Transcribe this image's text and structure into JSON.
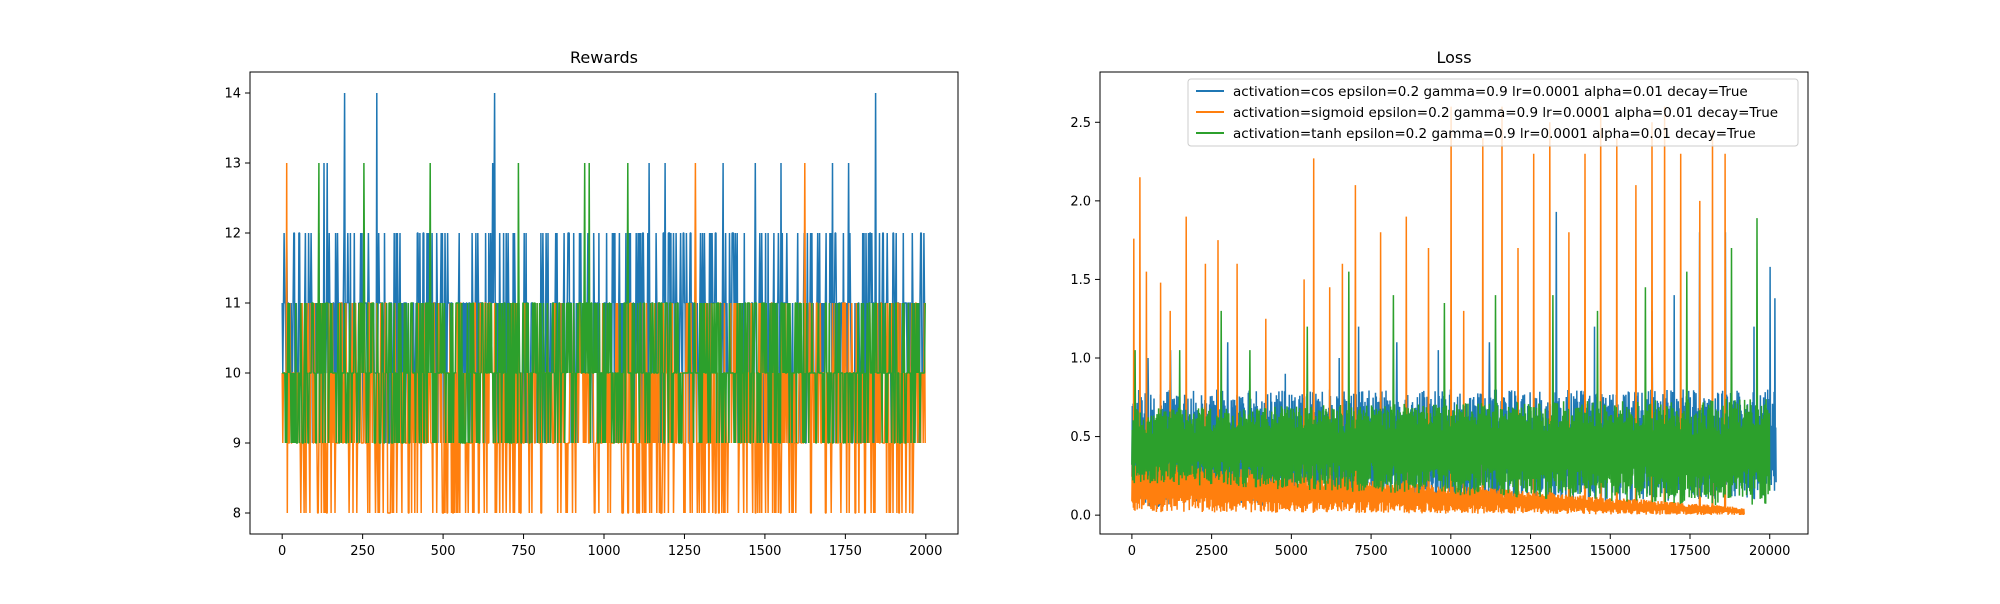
{
  "colors": {
    "blue": "#1f77b4",
    "orange": "#ff7f0e",
    "green": "#2ca02c"
  },
  "chart_data": [
    {
      "type": "line",
      "title": "Rewards",
      "xlabel": "",
      "ylabel": "",
      "xlim": [
        -100,
        2100
      ],
      "ylim": [
        7.7,
        14.3
      ],
      "xticks": [
        0,
        250,
        500,
        750,
        1000,
        1250,
        1500,
        1750,
        2000
      ],
      "yticks": [
        8,
        9,
        10,
        11,
        12,
        13,
        14
      ],
      "grid": false,
      "series": [
        {
          "color": "blue",
          "band": [
            9,
            12
          ],
          "n": 2000,
          "spikes": [
            {
              "x": 195,
              "y": 14
            },
            {
              "x": 295,
              "y": 14
            },
            {
              "x": 660,
              "y": 14
            },
            {
              "x": 1845,
              "y": 14
            },
            {
              "x": 130,
              "y": 13
            },
            {
              "x": 140,
              "y": 13
            },
            {
              "x": 655,
              "y": 13
            },
            {
              "x": 1140,
              "y": 13
            },
            {
              "x": 1190,
              "y": 13
            },
            {
              "x": 1370,
              "y": 13
            },
            {
              "x": 1470,
              "y": 13
            },
            {
              "x": 1550,
              "y": 13
            },
            {
              "x": 1710,
              "y": 13
            },
            {
              "x": 1760,
              "y": 13
            }
          ]
        },
        {
          "color": "orange",
          "band": [
            8,
            11
          ],
          "n": 2000,
          "spikes": [
            {
              "x": 15,
              "y": 13
            },
            {
              "x": 1285,
              "y": 13
            },
            {
              "x": 1625,
              "y": 13
            }
          ]
        },
        {
          "color": "green",
          "band": [
            9,
            11
          ],
          "n": 2000,
          "spikes": [
            {
              "x": 115,
              "y": 13
            },
            {
              "x": 255,
              "y": 13
            },
            {
              "x": 460,
              "y": 13
            },
            {
              "x": 735,
              "y": 13
            },
            {
              "x": 940,
              "y": 13
            },
            {
              "x": 955,
              "y": 13
            },
            {
              "x": 1075,
              "y": 13
            }
          ]
        }
      ]
    },
    {
      "type": "line",
      "title": "Loss",
      "xlabel": "",
      "ylabel": "",
      "xlim": [
        -1000,
        21200
      ],
      "ylim": [
        -0.12,
        2.82
      ],
      "xticks": [
        0,
        2500,
        5000,
        7500,
        10000,
        12500,
        15000,
        17500,
        20000
      ],
      "yticks": [
        0.0,
        0.5,
        1.0,
        1.5,
        2.0,
        2.5
      ],
      "yticklabels": [
        "0.0",
        "0.5",
        "1.0",
        "1.5",
        "2.0",
        "2.5"
      ],
      "grid": false,
      "legend": {
        "position": "top-right",
        "entries": [
          {
            "color": "blue",
            "label": "activation=cos epsilon=0.2 gamma=0.9 lr=0.0001 alpha=0.01 decay=True"
          },
          {
            "color": "orange",
            "label": "activation=sigmoid epsilon=0.2 gamma=0.9 lr=0.0001 alpha=0.01 decay=True"
          },
          {
            "color": "green",
            "label": "activation=tanh epsilon=0.2 gamma=0.9 lr=0.0001 alpha=0.01 decay=True"
          }
        ]
      },
      "series": [
        {
          "color": "blue",
          "x_end": 20200,
          "band_start": [
            0.05,
            0.8
          ],
          "band_end": [
            0.1,
            0.8
          ],
          "spikes": [
            {
              "x": 500,
              "y": 1.0
            },
            {
              "x": 1200,
              "y": 1.05
            },
            {
              "x": 3000,
              "y": 1.1
            },
            {
              "x": 4800,
              "y": 0.9
            },
            {
              "x": 6500,
              "y": 1.0
            },
            {
              "x": 7100,
              "y": 1.2
            },
            {
              "x": 8300,
              "y": 1.1
            },
            {
              "x": 9600,
              "y": 1.05
            },
            {
              "x": 11200,
              "y": 1.1
            },
            {
              "x": 13300,
              "y": 1.93
            },
            {
              "x": 14500,
              "y": 1.2
            },
            {
              "x": 16300,
              "y": 1.3
            },
            {
              "x": 17000,
              "y": 1.4
            },
            {
              "x": 17800,
              "y": 1.8
            },
            {
              "x": 18600,
              "y": 1.8
            },
            {
              "x": 19500,
              "y": 1.2
            },
            {
              "x": 20000,
              "y": 1.58
            },
            {
              "x": 20150,
              "y": 1.38
            }
          ]
        },
        {
          "color": "orange",
          "x_end": 19200,
          "band_start": [
            0.02,
            0.35
          ],
          "band_end": [
            0.0,
            0.05
          ],
          "spikes": [
            {
              "x": 50,
              "y": 1.76
            },
            {
              "x": 250,
              "y": 2.15
            },
            {
              "x": 450,
              "y": 1.55
            },
            {
              "x": 900,
              "y": 1.48
            },
            {
              "x": 1200,
              "y": 1.3
            },
            {
              "x": 1700,
              "y": 1.9
            },
            {
              "x": 2300,
              "y": 1.6
            },
            {
              "x": 2700,
              "y": 1.75
            },
            {
              "x": 3300,
              "y": 1.6
            },
            {
              "x": 4200,
              "y": 1.25
            },
            {
              "x": 5400,
              "y": 1.5
            },
            {
              "x": 5700,
              "y": 2.27
            },
            {
              "x": 6200,
              "y": 1.45
            },
            {
              "x": 6600,
              "y": 1.6
            },
            {
              "x": 7000,
              "y": 2.1
            },
            {
              "x": 7800,
              "y": 1.8
            },
            {
              "x": 8600,
              "y": 1.9
            },
            {
              "x": 9300,
              "y": 1.7
            },
            {
              "x": 10000,
              "y": 2.6
            },
            {
              "x": 10400,
              "y": 1.3
            },
            {
              "x": 11000,
              "y": 2.4
            },
            {
              "x": 11600,
              "y": 2.6
            },
            {
              "x": 12100,
              "y": 1.7
            },
            {
              "x": 12600,
              "y": 2.3
            },
            {
              "x": 13100,
              "y": 2.5
            },
            {
              "x": 13700,
              "y": 1.8
            },
            {
              "x": 14200,
              "y": 2.3
            },
            {
              "x": 14700,
              "y": 2.6
            },
            {
              "x": 15200,
              "y": 2.4
            },
            {
              "x": 15800,
              "y": 2.1
            },
            {
              "x": 16300,
              "y": 2.5
            },
            {
              "x": 16700,
              "y": 2.6
            },
            {
              "x": 17200,
              "y": 2.3
            },
            {
              "x": 17800,
              "y": 2.0
            },
            {
              "x": 18200,
              "y": 2.45
            },
            {
              "x": 18600,
              "y": 2.3
            }
          ]
        },
        {
          "color": "green",
          "x_end": 20000,
          "band_start": [
            0.2,
            0.68
          ],
          "band_end": [
            0.05,
            0.75
          ],
          "spikes": [
            {
              "x": 100,
              "y": 1.05
            },
            {
              "x": 1500,
              "y": 1.05
            },
            {
              "x": 2800,
              "y": 1.3
            },
            {
              "x": 3700,
              "y": 1.05
            },
            {
              "x": 5500,
              "y": 1.2
            },
            {
              "x": 6800,
              "y": 1.55
            },
            {
              "x": 8200,
              "y": 1.4
            },
            {
              "x": 9800,
              "y": 1.35
            },
            {
              "x": 11400,
              "y": 1.4
            },
            {
              "x": 13200,
              "y": 1.4
            },
            {
              "x": 14600,
              "y": 1.3
            },
            {
              "x": 16100,
              "y": 1.45
            },
            {
              "x": 17400,
              "y": 1.55
            },
            {
              "x": 18800,
              "y": 1.7
            },
            {
              "x": 19600,
              "y": 1.89
            }
          ]
        }
      ]
    }
  ]
}
